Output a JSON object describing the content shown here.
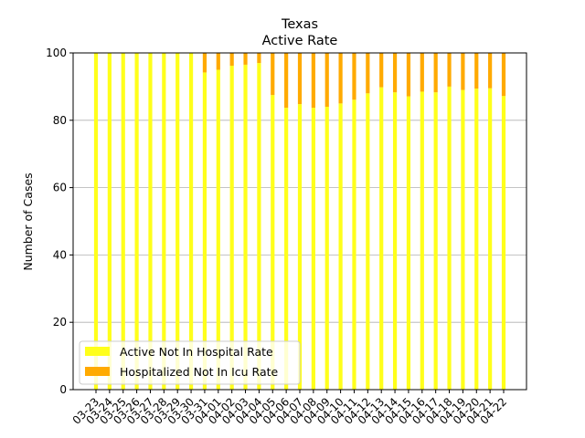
{
  "chart_data": {
    "type": "bar",
    "stacked": true,
    "title": "Texas",
    "subtitle": "Active Rate",
    "xlabel": "",
    "ylabel": "Number of Cases",
    "ylim": [
      0,
      100
    ],
    "yticks": [
      0,
      20,
      40,
      60,
      80,
      100
    ],
    "grid": "y",
    "legend_position": "lower-left",
    "categories": [
      "03-23",
      "03-24",
      "03-25",
      "03-26",
      "03-27",
      "03-28",
      "03-29",
      "03-30",
      "03-31",
      "04-01",
      "04-02",
      "04-03",
      "04-04",
      "04-05",
      "04-06",
      "04-07",
      "04-08",
      "04-09",
      "04-10",
      "04-11",
      "04-12",
      "04-13",
      "04-14",
      "04-15",
      "04-16",
      "04-17",
      "04-18",
      "04-19",
      "04-20",
      "04-21",
      "04-22"
    ],
    "series": [
      {
        "name": "Active Not In Hospital Rate",
        "color": "#ffff1a",
        "values": [
          100,
          100,
          100,
          100,
          100,
          100,
          100,
          100,
          94.2,
          95.0,
          96.2,
          96.5,
          97.0,
          87.5,
          83.7,
          84.8,
          83.7,
          84.0,
          85.0,
          86.1,
          88.0,
          89.8,
          88.3,
          87.1,
          88.5,
          88.3,
          90.0,
          89.0,
          89.4,
          89.5,
          87.2
        ]
      },
      {
        "name": "Hospitalized Not In Icu Rate",
        "color": "#ffaa00",
        "values": [
          0,
          0,
          0,
          0,
          0,
          0,
          0,
          0,
          5.8,
          5.0,
          3.8,
          3.5,
          3.0,
          12.5,
          16.3,
          15.2,
          16.3,
          16.0,
          15.0,
          13.9,
          12.0,
          10.2,
          11.7,
          12.9,
          11.5,
          11.7,
          10.0,
          11.0,
          10.6,
          10.5,
          12.8
        ]
      }
    ]
  }
}
